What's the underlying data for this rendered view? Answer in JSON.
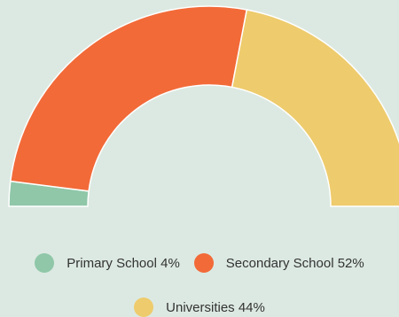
{
  "chart_data": {
    "type": "pie",
    "variant": "half-donut",
    "categories": [
      "Primary School",
      "Secondary School",
      "Universities"
    ],
    "values": [
      4,
      52,
      44
    ],
    "unit": "%",
    "colors": [
      "#8fc7a8",
      "#f26a38",
      "#eecb6c"
    ],
    "legend_labels": [
      "Primary School 4%",
      "Secondary School 52%",
      "Universities 44%"
    ],
    "legend_position": "bottom"
  },
  "colors": {
    "background": "#dce9e2"
  }
}
